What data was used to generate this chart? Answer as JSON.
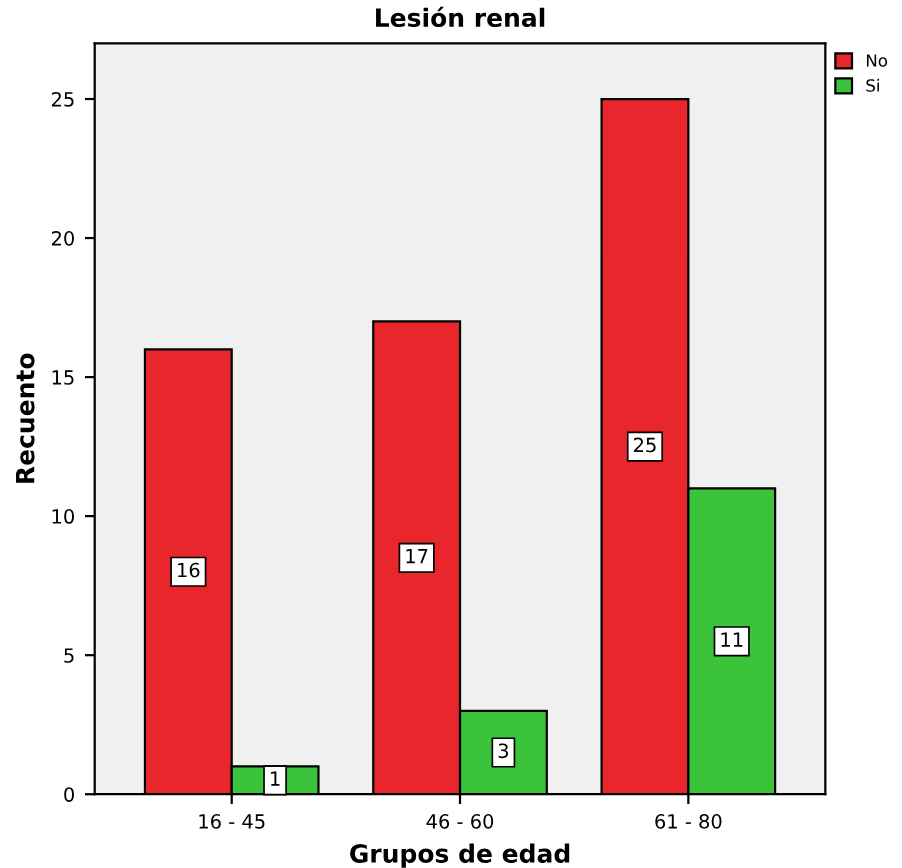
{
  "chart_data": {
    "type": "bar",
    "title": "Lesión renal",
    "xlabel": "Grupos de edad",
    "ylabel": "Recuento",
    "categories": [
      "16 - 45",
      "46 - 60",
      "61 - 80"
    ],
    "series": [
      {
        "name": "No",
        "color": "#e8262b",
        "values": [
          16,
          17,
          25
        ]
      },
      {
        "name": "Si",
        "color": "#3cc33c",
        "values": [
          1,
          3,
          11
        ]
      }
    ],
    "ylim": [
      0,
      27
    ],
    "yticks": [
      0,
      5,
      10,
      15,
      20,
      25
    ],
    "grid": false,
    "legend": "top right",
    "data_labels": true
  }
}
